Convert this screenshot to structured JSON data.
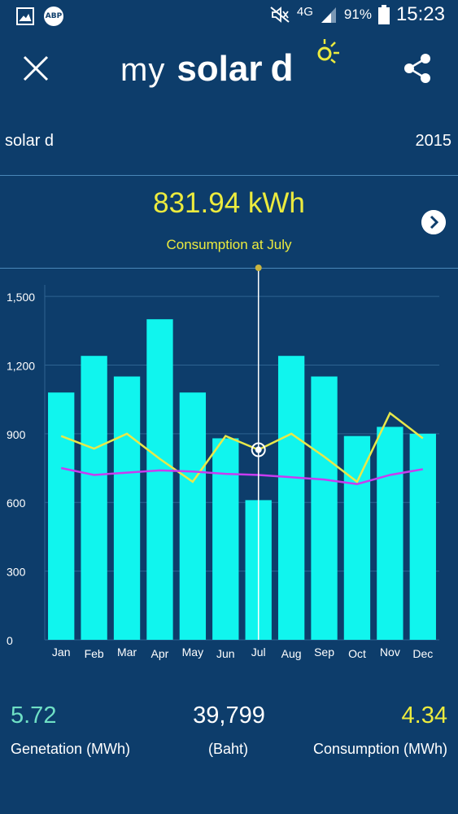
{
  "status_bar": {
    "network": "4G",
    "battery": "91%",
    "time": "15:23",
    "icons": [
      "gallery-icon",
      "adblock-icon",
      "mute-icon",
      "signal-icon",
      "battery-icon"
    ],
    "adblock_text": "ABP"
  },
  "app_bar": {
    "brand_my": "my",
    "brand_solar": "solar",
    "brand_d": "d",
    "close_icon": "close-icon",
    "share_icon": "share-icon"
  },
  "header": {
    "plant_name": "solar d",
    "year": "2015"
  },
  "summary": {
    "value": "831.94 kWh",
    "caption": "Consumption at July",
    "next_icon": "chevron-right-icon"
  },
  "chart_data": {
    "type": "bar",
    "categories": [
      "Jan",
      "Feb",
      "Mar",
      "Apr",
      "May",
      "Jun",
      "Jul",
      "Aug",
      "Sep",
      "Oct",
      "Nov",
      "Dec"
    ],
    "y_ticks": [
      "0",
      "300",
      "600",
      "900",
      "1,200",
      "1,500"
    ],
    "ylim": [
      0,
      1550
    ],
    "grid": true,
    "selected_category": "Jul",
    "series": [
      {
        "values": [
          1080,
          1240,
          1150,
          1400,
          1080,
          880,
          610,
          1240,
          1150,
          890,
          930,
          900
        ],
        "color": "#10f5ee"
      },
      {
        "values": [
          890,
          835,
          900,
          790,
          690,
          890,
          830,
          900,
          800,
          690,
          990,
          880
        ],
        "color": "#e8e84a"
      },
      {
        "values": [
          750,
          720,
          730,
          740,
          735,
          725,
          720,
          710,
          700,
          680,
          720,
          745
        ],
        "color": "#c83cf0"
      }
    ]
  },
  "stats": {
    "generation_value": "5.72",
    "generation_label": "Genetation (MWh)",
    "baht_value": "39,799",
    "baht_label": "(Baht)",
    "consumption_value": "4.34",
    "consumption_label": "Consumption (MWh)"
  },
  "colors": {
    "background": "#0d3d6b",
    "accent_yellow": "#eceb3e",
    "generation_teal": "#6fe0c5",
    "bar_cyan": "#10f5ee",
    "line_purple": "#c83cf0"
  }
}
